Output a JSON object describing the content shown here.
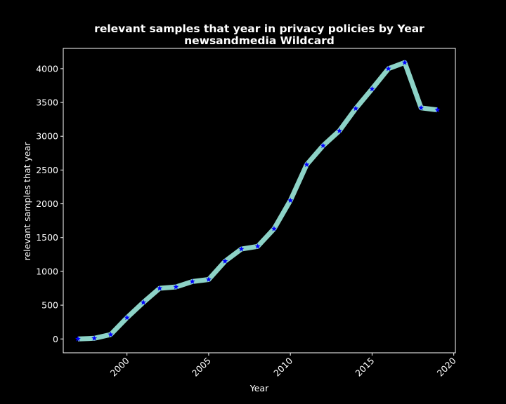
{
  "chart_data": {
    "type": "line",
    "title_lines": [
      "relevant samples that year in privacy policies by Year",
      "newsandmedia Wildcard"
    ],
    "xlabel": "Year",
    "ylabel": "relevant samples that year",
    "xlim": [
      1996.1,
      2020.1
    ],
    "ylim": [
      -205,
      4300
    ],
    "x_ticks": [
      2000,
      2005,
      2010,
      2015,
      2020
    ],
    "y_ticks": [
      0,
      500,
      1000,
      1500,
      2000,
      2500,
      3000,
      3500,
      4000
    ],
    "grid": false,
    "colors": {
      "background": "#000000",
      "line": "#8dd3c7",
      "marker": "#0000ff",
      "text": "#ffffff"
    },
    "series": [
      {
        "x": [
          1997,
          1998,
          1999,
          2000,
          2001,
          2002,
          2003,
          2004,
          2005,
          2006,
          2007,
          2008,
          2009,
          2010,
          2011,
          2012,
          2013,
          2014,
          2015,
          2016,
          2017,
          2018,
          2019
        ],
        "values": [
          0,
          10,
          65,
          315,
          540,
          750,
          770,
          850,
          880,
          1150,
          1330,
          1370,
          1630,
          2050,
          2580,
          2860,
          3080,
          3410,
          3700,
          4000,
          4090,
          3420,
          3390
        ]
      }
    ]
  }
}
